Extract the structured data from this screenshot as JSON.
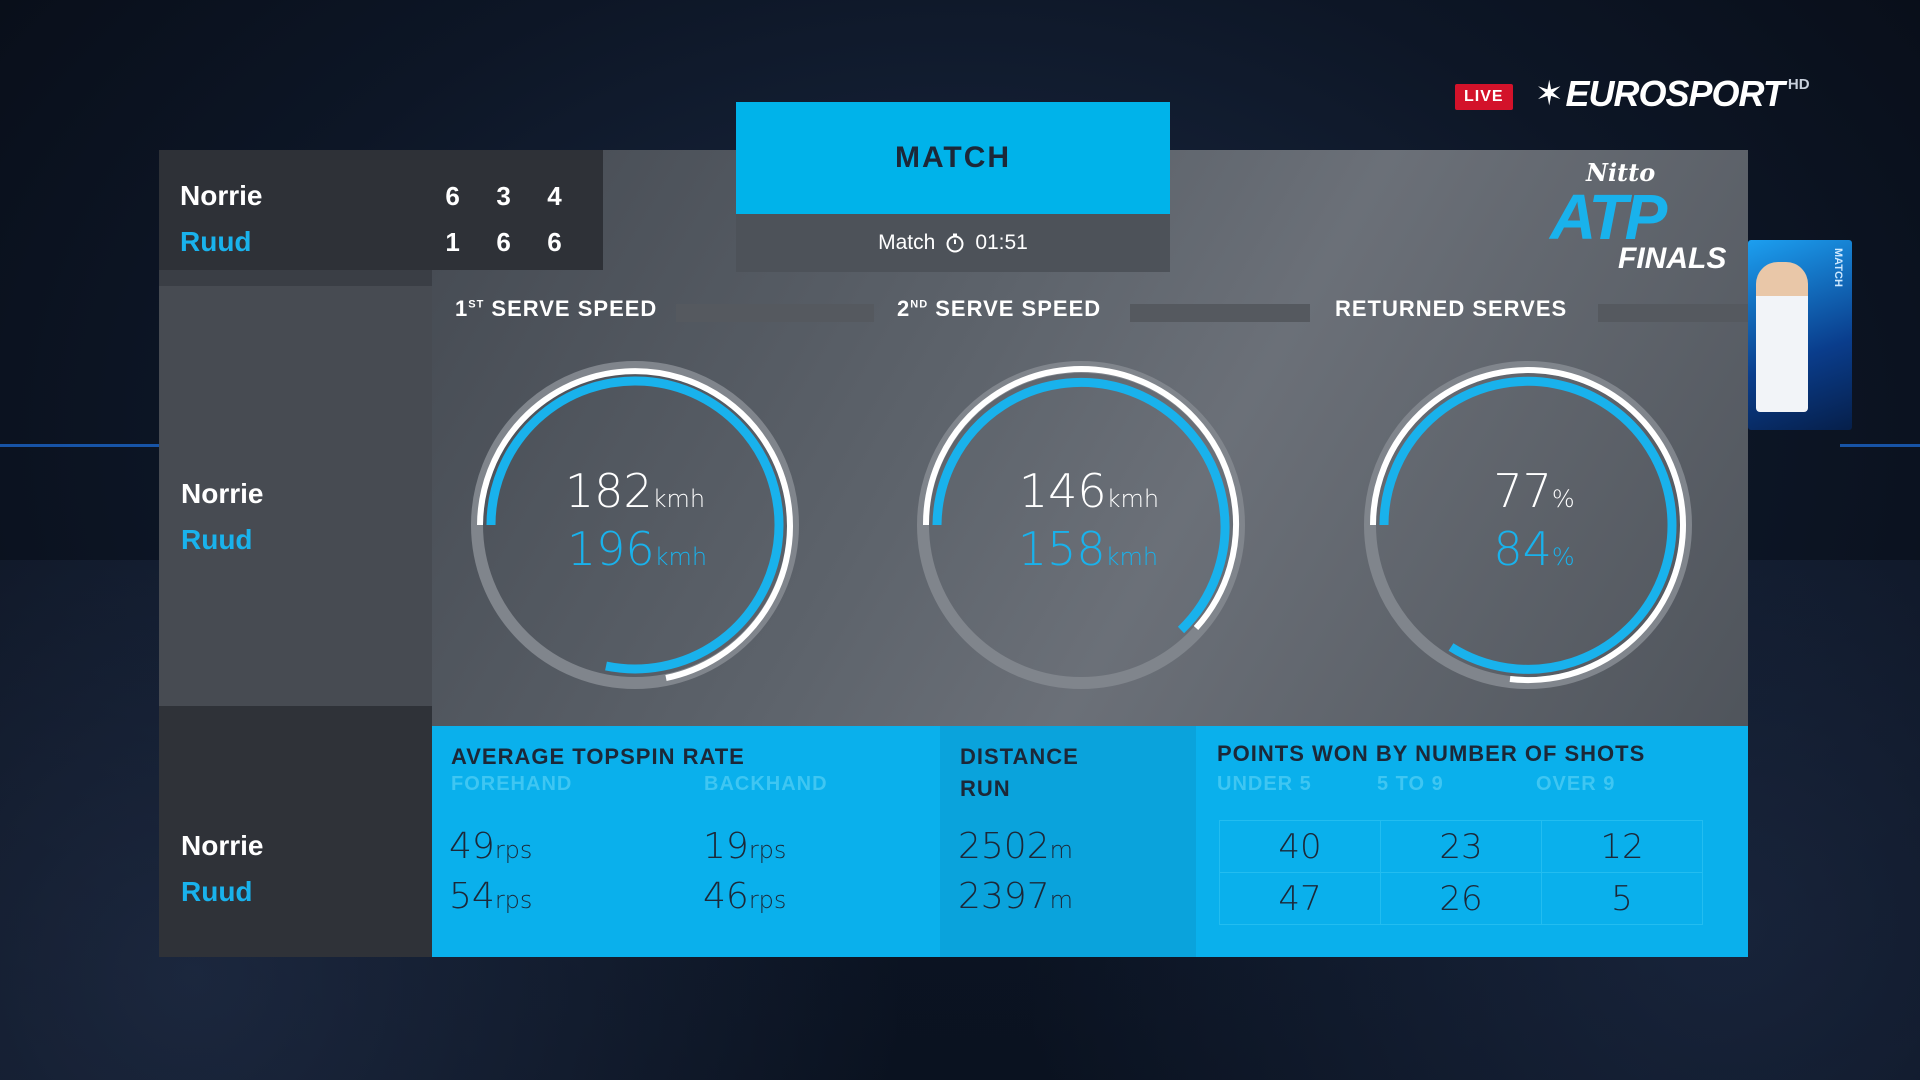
{
  "broadcast": {
    "live_label": "LIVE",
    "channel": "EUROSPORT",
    "quality": "HD"
  },
  "logo": {
    "top": "Nitto",
    "main": "ATP",
    "bottom": "FINALS"
  },
  "jumbotron": {
    "text": "MATCH"
  },
  "tab": {
    "title": "MATCH",
    "duration_label": "Match",
    "duration": "01:51"
  },
  "score": {
    "players": [
      {
        "name": "Norrie",
        "sets": [
          "6",
          "3",
          "4"
        ]
      },
      {
        "name": "Ruud",
        "sets": [
          "1",
          "6",
          "6"
        ]
      }
    ]
  },
  "gauges": {
    "first_serve": {
      "title_num": "1",
      "title_sup": "ST",
      "title_rest": " SERVE SPEED",
      "p1_value": "182",
      "p2_value": "196",
      "unit": "kmh"
    },
    "second_serve": {
      "title_num": "2",
      "title_sup": "ND",
      "title_rest": " SERVE SPEED",
      "p1_value": "146",
      "p2_value": "158",
      "unit": "kmh"
    },
    "returned": {
      "title": "RETURNED SERVES",
      "p1_value": "77",
      "p2_value": "84",
      "unit": "%"
    }
  },
  "names": {
    "p1": "Norrie",
    "p2": "Ruud"
  },
  "topspin": {
    "title": "AVERAGE TOPSPIN RATE",
    "forehand_label": "FOREHAND",
    "backhand_label": "BACKHAND",
    "p1_forehand": "49",
    "p2_forehand": "54",
    "p1_backhand": "19",
    "p2_backhand": "46",
    "unit": "rps"
  },
  "distance": {
    "title_line1": "DISTANCE",
    "title_line2": "RUN",
    "p1": "2502",
    "p2": "2397",
    "unit": "m"
  },
  "points": {
    "title": "POINTS WON BY NUMBER OF SHOTS",
    "headers": [
      "UNDER 5",
      "5 TO 9",
      "OVER 9"
    ],
    "rows": [
      [
        "40",
        "23",
        "12"
      ],
      [
        "47",
        "26",
        "5"
      ]
    ]
  },
  "colors": {
    "ruud": "#19b2ec",
    "norrie": "#ffffff",
    "accent": "#00b3ea",
    "live": "#d3122a"
  }
}
